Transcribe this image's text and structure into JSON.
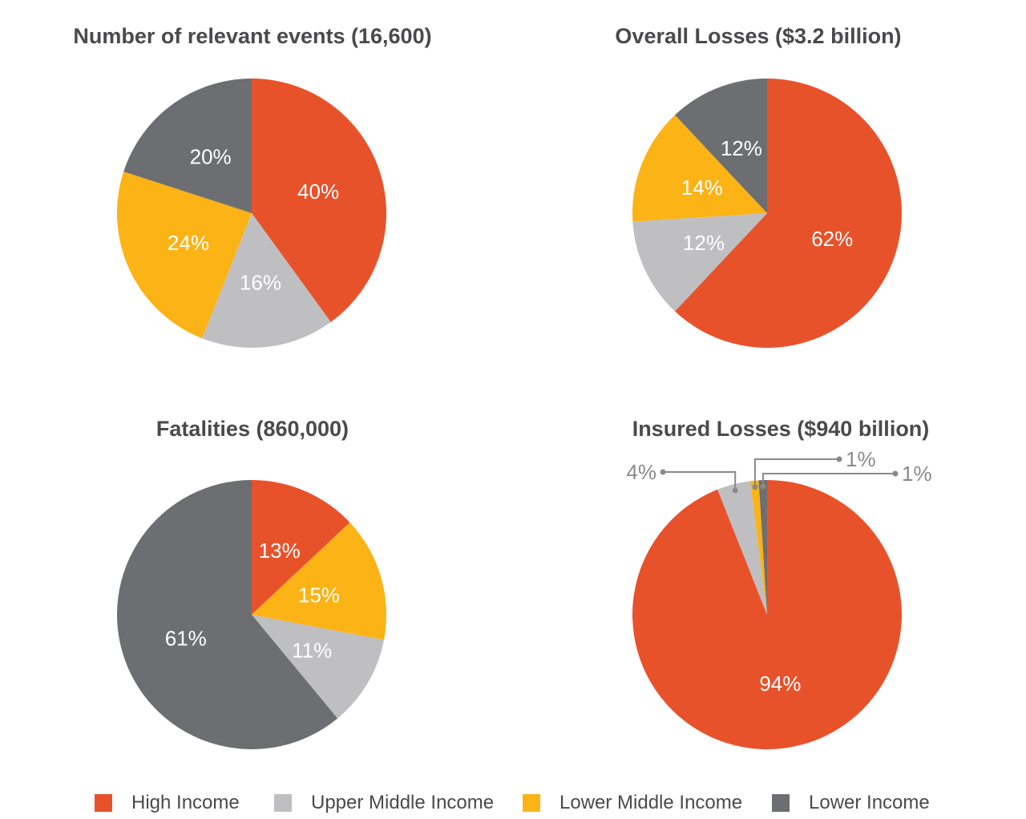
{
  "colors": {
    "high_income": "#e8522b",
    "upper_middle_income": "#bfbfc1",
    "lower_middle_income": "#fbb316",
    "lower_income": "#6d6e71"
  },
  "legend": [
    {
      "label": "High Income",
      "color": "#e8522b"
    },
    {
      "label": "Upper Middle Income",
      "color": "#bfbfc1"
    },
    {
      "label": "Lower Middle Income",
      "color": "#fbb316"
    },
    {
      "label": "Lower Income",
      "color": "#6d6e71"
    }
  ],
  "chart_data": [
    {
      "type": "pie",
      "title": "Number of relevant events (16,600)",
      "slices": [
        {
          "category": "High Income",
          "value": 40,
          "label": "40%"
        },
        {
          "category": "Upper Middle Income",
          "value": 16,
          "label": "16%"
        },
        {
          "category": "Lower Middle Income",
          "value": 24,
          "label": "24%"
        },
        {
          "category": "Lower Income",
          "value": 20,
          "label": "20%"
        }
      ]
    },
    {
      "type": "pie",
      "title": "Overall Losses ($3.2 billion)",
      "slices": [
        {
          "category": "High Income",
          "value": 62,
          "label": "62%"
        },
        {
          "category": "Upper Middle Income",
          "value": 12,
          "label": "12%"
        },
        {
          "category": "Lower Middle Income",
          "value": 14,
          "label": "14%"
        },
        {
          "category": "Lower Income",
          "value": 12,
          "label": "12%"
        }
      ]
    },
    {
      "type": "pie",
      "title": "Fatalities (860,000)",
      "slices": [
        {
          "category": "High Income",
          "value": 13,
          "label": "13%"
        },
        {
          "category": "Upper Middle Income",
          "value": 11,
          "label": "11%"
        },
        {
          "category": "Lower Middle Income",
          "value": 15,
          "label": "15%"
        },
        {
          "category": "Lower Income",
          "value": 61,
          "label": "61%"
        }
      ]
    },
    {
      "type": "pie",
      "title": "Insured Losses ($940 billion)",
      "slices": [
        {
          "category": "High Income",
          "value": 94,
          "label": "94%"
        },
        {
          "category": "Upper Middle Income",
          "value": 4,
          "label": "4%"
        },
        {
          "category": "Lower Middle Income",
          "value": 1,
          "label": "1%"
        },
        {
          "category": "Lower Income",
          "value": 1,
          "label": "1%"
        }
      ]
    }
  ]
}
